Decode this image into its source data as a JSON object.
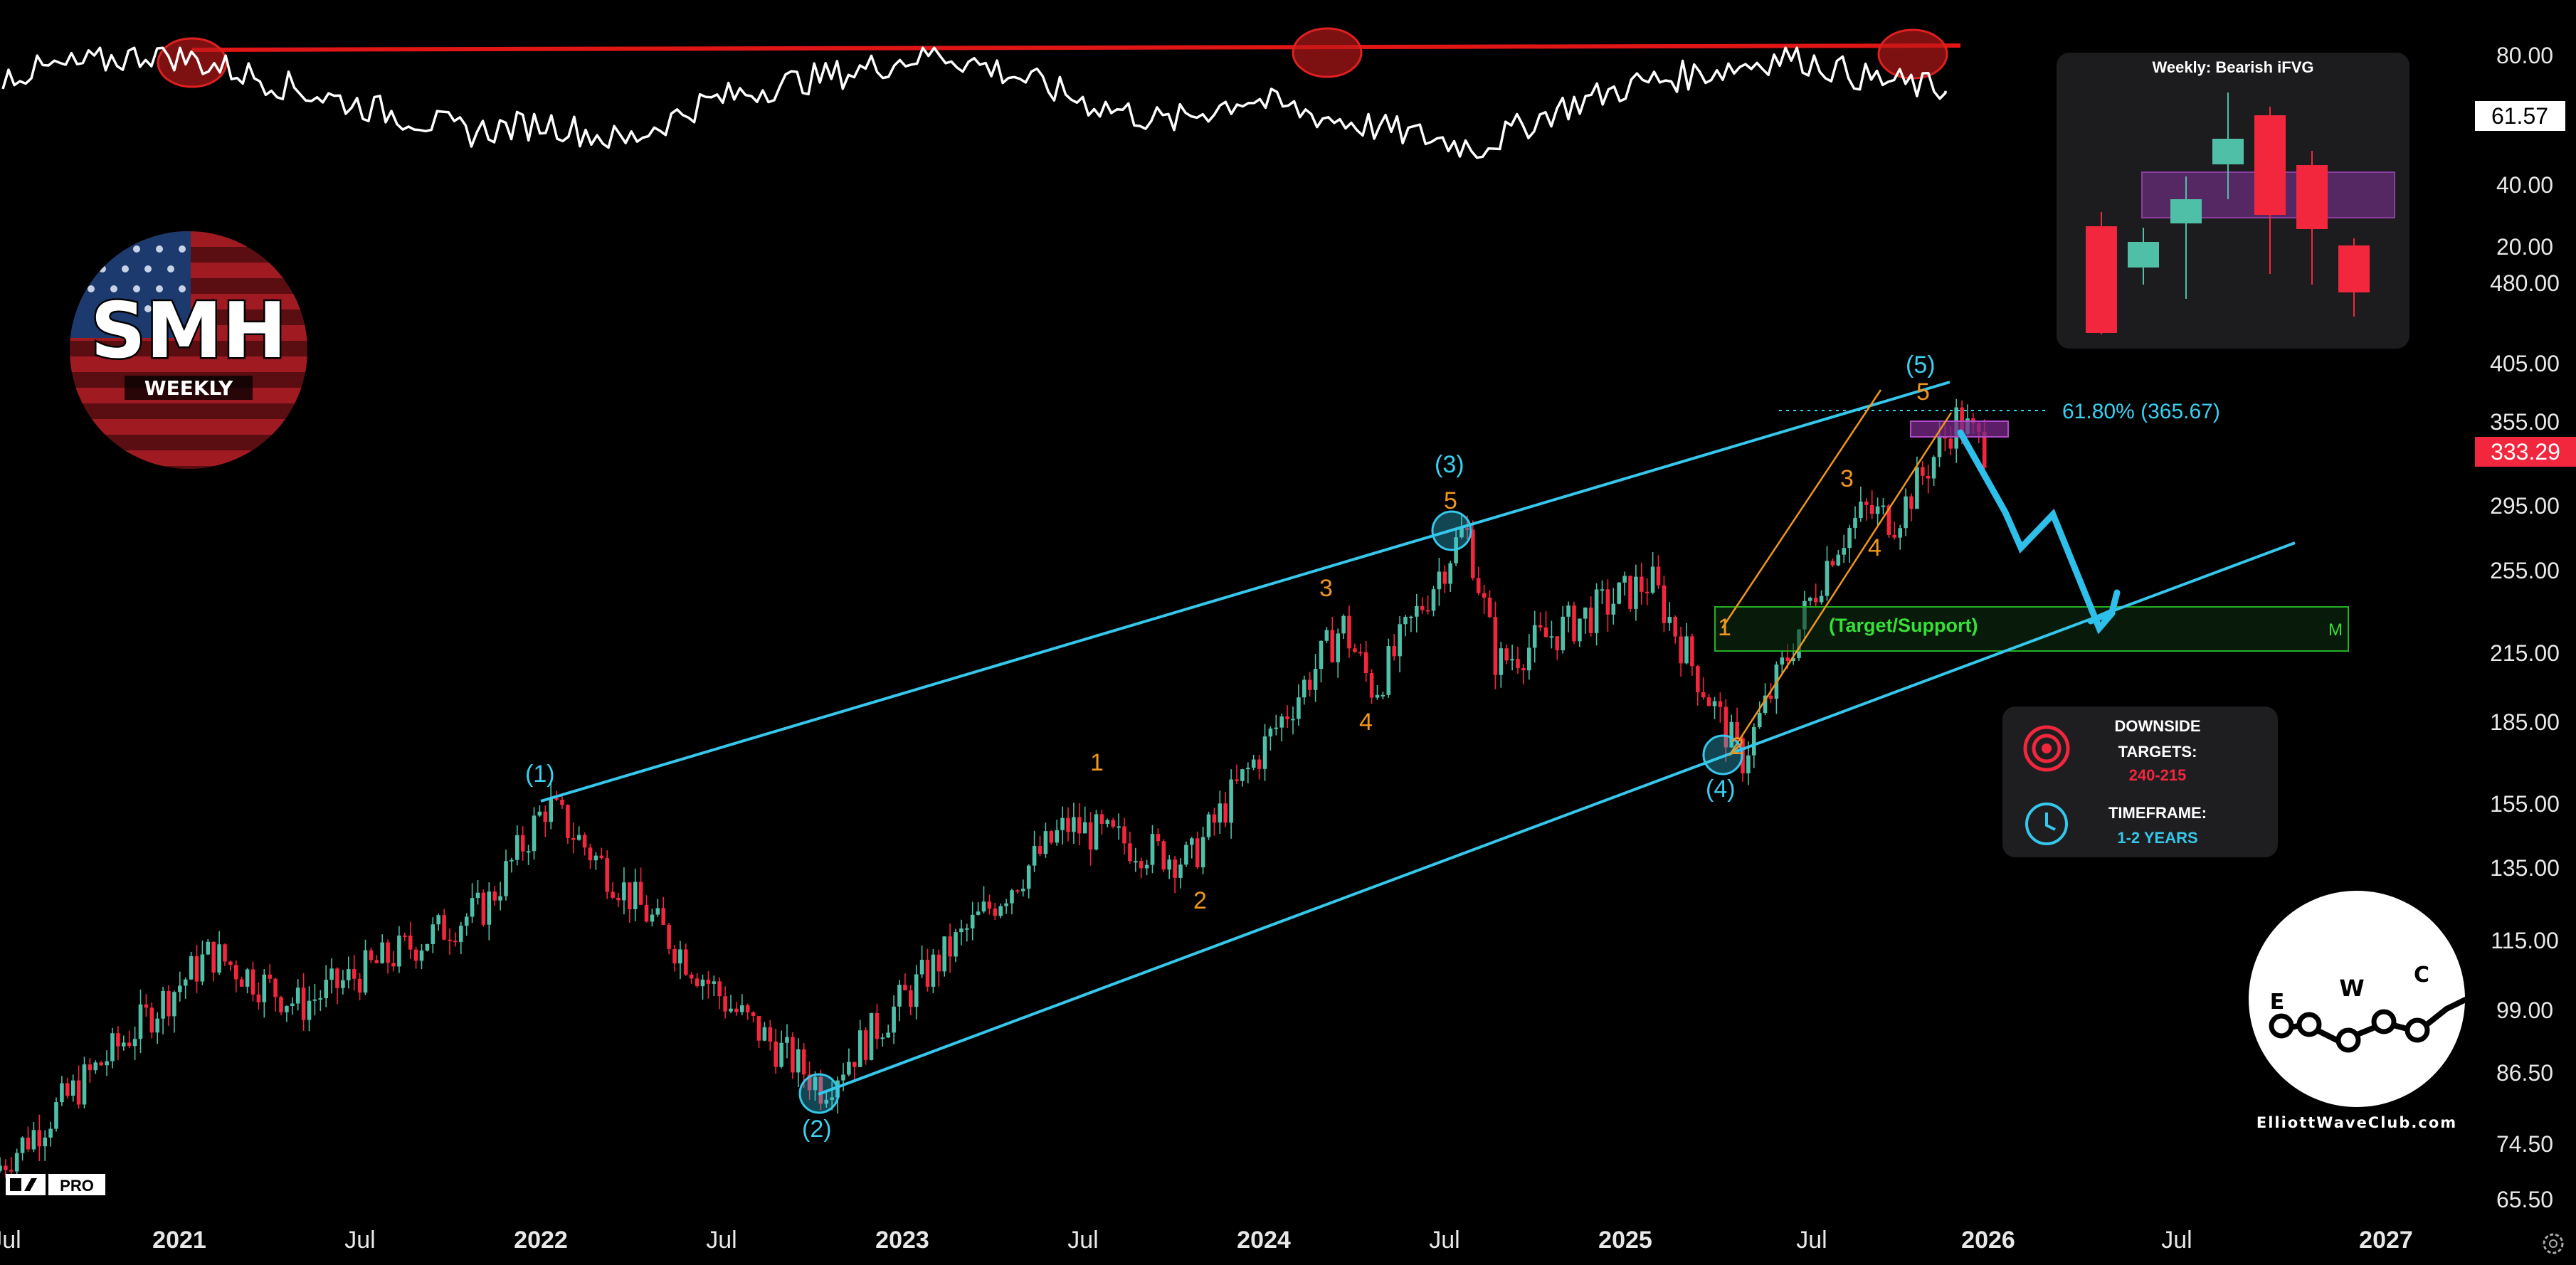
{
  "colors": {
    "up": "#4fbfa8",
    "down": "#f2263d",
    "channel": "#35c8ec",
    "wave_orange": "#f0961e",
    "rsi_line": "#ffffff",
    "resistance": "#e01515",
    "support_zone": "#1fa01f",
    "fvg": "#7b2a8a"
  },
  "badge": {
    "ticker": "SMH",
    "timeframe": "WEEKLY"
  },
  "rsi_axis": {
    "labels": [
      "80.00",
      "40.00",
      "20.00"
    ],
    "current": "61.57"
  },
  "price_axis": {
    "labels": [
      "480.00",
      "405.00",
      "355.00",
      "295.00",
      "255.00",
      "215.00",
      "185.00",
      "155.00",
      "135.00",
      "115.00",
      "99.00",
      "86.50",
      "74.50",
      "65.50"
    ],
    "current": "333.29"
  },
  "time_axis": {
    "labels": [
      {
        "text": "Jul",
        "year": false
      },
      {
        "text": "2021",
        "year": true
      },
      {
        "text": "Jul",
        "year": false
      },
      {
        "text": "2022",
        "year": true
      },
      {
        "text": "Jul",
        "year": false
      },
      {
        "text": "2023",
        "year": true
      },
      {
        "text": "Jul",
        "year": false
      },
      {
        "text": "2024",
        "year": true
      },
      {
        "text": "Jul",
        "year": false
      },
      {
        "text": "2025",
        "year": true
      },
      {
        "text": "Jul",
        "year": false
      },
      {
        "text": "2026",
        "year": true
      },
      {
        "text": "Jul",
        "year": false
      },
      {
        "text": "2027",
        "year": true
      }
    ]
  },
  "annotations": {
    "fib_label": "61.80% (365.67)",
    "target_zone": "(Target/Support)",
    "target_zone_tag": "M",
    "fvg_title": "Weekly: Bearish iFVG"
  },
  "waves": {
    "primary": [
      "(1)",
      "(2)",
      "(3)",
      "(4)",
      "(5)"
    ],
    "minor_a": [
      "1",
      "2",
      "3",
      "4",
      "5"
    ],
    "minor_b": [
      "1",
      "2",
      "3",
      "4",
      "5"
    ]
  },
  "targets_panel": {
    "downside_title": "DOWNSIDE",
    "targets_label": "TARGETS:",
    "targets_value": "240-215",
    "timeframe_title": "TIMEFRAME:",
    "timeframe_value": "1-2 YEARS"
  },
  "logo": {
    "letters": [
      "E",
      "W",
      "C"
    ],
    "site": "ElliottWaveClub.com"
  },
  "platform": {
    "badge": "PRO"
  },
  "chart_data": {
    "type": "candlestick",
    "title": "",
    "timeframe": "weekly",
    "scale": "log",
    "ylim": [
      62,
      520
    ],
    "xlim": [
      "2020-06",
      "2027-04"
    ],
    "key_points": [
      {
        "date": "2020-07",
        "price": 70
      },
      {
        "date": "2021-02",
        "price": 112
      },
      {
        "date": "2021-05",
        "price": 100
      },
      {
        "date": "2021-11",
        "price": 124
      },
      {
        "date": "2022-01",
        "price": 155
      },
      {
        "date": "2022-07",
        "price": 100
      },
      {
        "date": "2022-10",
        "price": 84
      },
      {
        "date": "2023-06",
        "price": 148
      },
      {
        "date": "2023-10",
        "price": 137
      },
      {
        "date": "2024-03",
        "price": 228
      },
      {
        "date": "2024-04",
        "price": 198
      },
      {
        "date": "2024-07",
        "price": 281
      },
      {
        "date": "2024-08",
        "price": 210
      },
      {
        "date": "2025-01",
        "price": 250
      },
      {
        "date": "2025-04",
        "price": 170
      },
      {
        "date": "2025-07",
        "price": 268
      },
      {
        "date": "2025-08",
        "price": 292
      },
      {
        "date": "2025-09",
        "price": 286
      },
      {
        "date": "2025-11",
        "price": 358
      },
      {
        "date": "2025-12",
        "price": 333.29
      }
    ],
    "channel": {
      "upper": [
        {
          "date": "2022-01",
          "price": 158
        },
        {
          "date": "2025-11",
          "price": 395
        }
      ],
      "lower": [
        {
          "date": "2022-10",
          "price": 84
        },
        {
          "date": "2026-12",
          "price": 270
        }
      ]
    },
    "resistance_rsi": 82,
    "rsi_current": 61.57,
    "fib_level": 365.67,
    "target_zone": [
      215,
      240
    ],
    "projection": [
      {
        "date": "2025-12",
        "price": 340
      },
      {
        "date": "2026-03",
        "price": 262
      },
      {
        "date": "2026-05",
        "price": 300
      },
      {
        "date": "2026-09",
        "price": 225
      },
      {
        "date": "2026-10",
        "price": 246
      }
    ],
    "downside_targets": "240-215",
    "timeframe_estimate": "1-2 YEARS",
    "rsi_series_hint": [
      70,
      75,
      82,
      72,
      60,
      50,
      40,
      45,
      35,
      55,
      65,
      72,
      82,
      70,
      55,
      45,
      58,
      48,
      40,
      32,
      52,
      65,
      72,
      80,
      68,
      62
    ]
  }
}
